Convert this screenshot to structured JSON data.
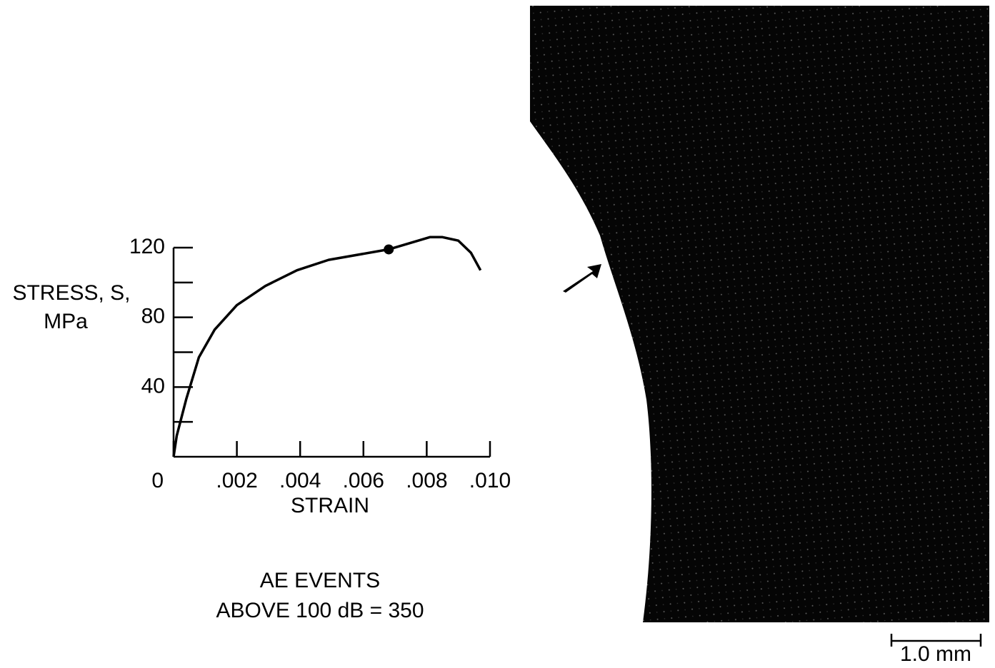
{
  "chart_data": {
    "type": "line",
    "x_label": "STRAIN",
    "y_label": [
      "STRESS, S,",
      "MPa"
    ],
    "x": [
      0,
      0.0001,
      0.0004,
      0.0008,
      0.0013,
      0.002,
      0.0029,
      0.0039,
      0.0049,
      0.0068,
      0.0081,
      0.0085,
      0.009,
      0.0094,
      0.0097
    ],
    "series": [
      {
        "color": "#000000",
        "values": [
          0,
          12,
          33,
          57,
          73,
          87,
          98,
          107,
          113,
          119,
          126,
          126,
          124,
          117,
          107
        ]
      }
    ],
    "marker": {
      "x": 0.0068,
      "y": 119
    },
    "xlim": [
      0,
      0.01
    ],
    "ylim": [
      0,
      120
    ],
    "xticks": [
      0,
      {
        "value": 0.002,
        "label": ".002"
      },
      {
        "value": 0.004,
        "label": ".004"
      },
      {
        "value": 0.006,
        "label": ".006"
      },
      {
        "value": 0.008,
        "label": ".008"
      },
      {
        "value": 0.01,
        "label": ".010"
      }
    ],
    "yticks": [
      40,
      80,
      120
    ],
    "y_minor_ticks": [
      20,
      60,
      100
    ],
    "annotations": [
      "AE EVENTS",
      "ABOVE 100 dB = 350"
    ]
  },
  "micrograph": {
    "scale_bar": "1.0 mm"
  }
}
